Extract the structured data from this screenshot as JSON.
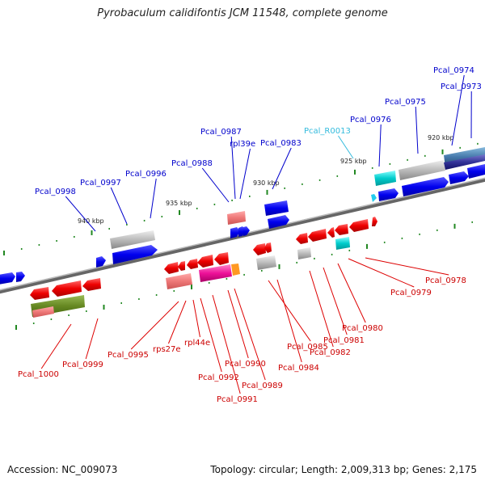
{
  "title": "Pyrobaculum calidifontis JCM 11548, complete genome",
  "footer": {
    "accession": "Accession: NC_009073",
    "summary": "Topology: circular; Length: 2,009,313 bp; Genes: 2,175"
  },
  "colors": {
    "forward_gene": "#0000ee",
    "reverse_gene": "#ee0000",
    "rna_label": "#33bbdd",
    "backbone": "#888888",
    "tick": "#228822"
  },
  "scale_labels": [
    "940 kbp",
    "935 kbp",
    "930 kbp",
    "925 kbp",
    "920 kbp"
  ],
  "top_genes": [
    {
      "name": "Pcal_0998",
      "color": "#0000cc"
    },
    {
      "name": "Pcal_0997",
      "color": "#0000cc"
    },
    {
      "name": "Pcal_0996",
      "color": "#0000cc"
    },
    {
      "name": "Pcal_0988",
      "color": "#0000cc"
    },
    {
      "name": "Pcal_0987",
      "color": "#0000cc"
    },
    {
      "name": "rpl39e",
      "color": "#0000cc"
    },
    {
      "name": "Pcal_0983",
      "color": "#0000cc"
    },
    {
      "name": "Pcal_R0013",
      "color": "#33bbdd"
    },
    {
      "name": "Pcal_0976",
      "color": "#0000cc"
    },
    {
      "name": "Pcal_0975",
      "color": "#0000cc"
    },
    {
      "name": "Pcal_0974",
      "color": "#0000cc"
    },
    {
      "name": "Pcal_0973",
      "color": "#0000cc"
    }
  ],
  "bottom_genes": [
    {
      "name": "Pcal_1000"
    },
    {
      "name": "Pcal_0999"
    },
    {
      "name": "Pcal_0995"
    },
    {
      "name": "rps27e"
    },
    {
      "name": "rpl44e"
    },
    {
      "name": "Pcal_0992"
    },
    {
      "name": "Pcal_0991"
    },
    {
      "name": "Pcal_0990"
    },
    {
      "name": "Pcal_0989"
    },
    {
      "name": "Pcal_0985"
    },
    {
      "name": "Pcal_0984"
    },
    {
      "name": "Pcal_0982"
    },
    {
      "name": "Pcal_0981"
    },
    {
      "name": "Pcal_0980"
    },
    {
      "name": "Pcal_0979"
    },
    {
      "name": "Pcal_0978"
    }
  ]
}
